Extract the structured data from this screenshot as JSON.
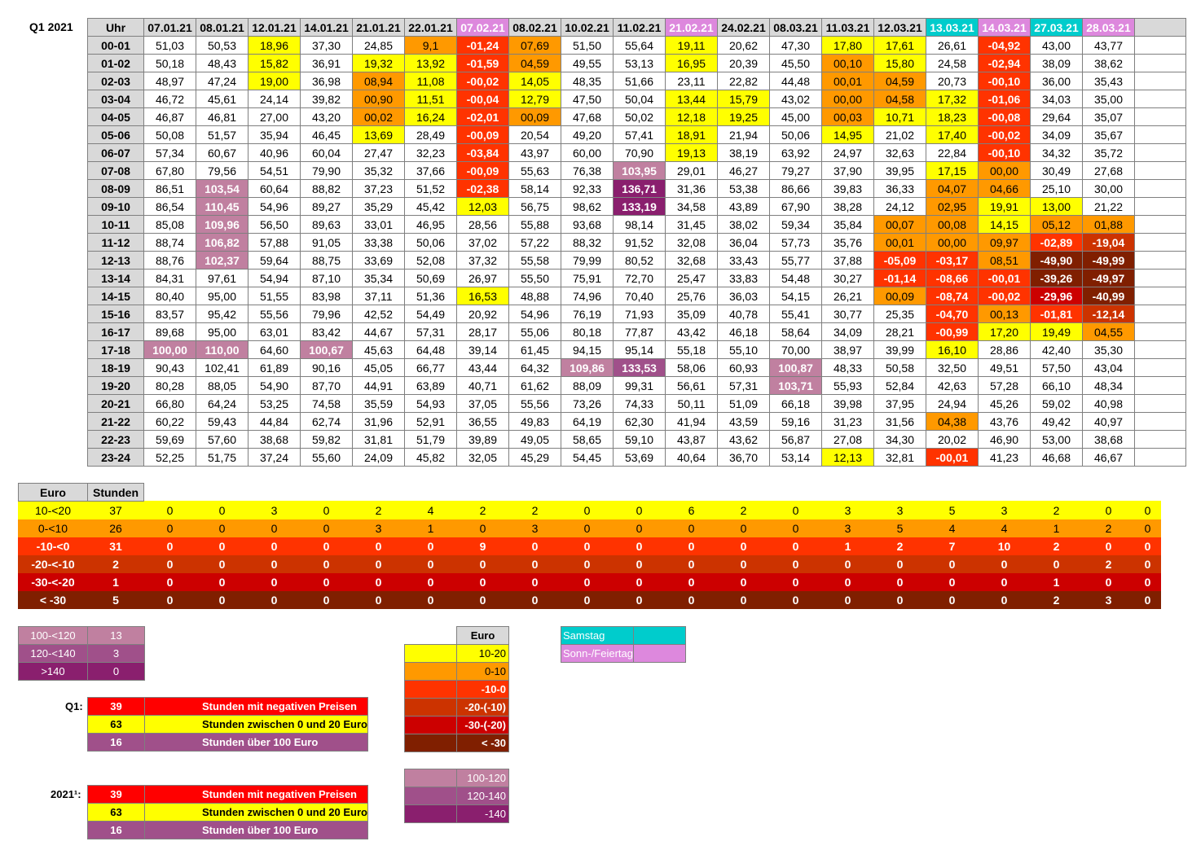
{
  "title": "Q1 2021",
  "colors": {
    "header": "#d9d9d9",
    "yellow": "#ffff00",
    "orange": "#ff9900",
    "red1": "#ff3300",
    "red2": "#cc3300",
    "red3": "#cc0000",
    "dark": "#801f00",
    "lilac": "#c080a0",
    "mauve": "#a0508a",
    "purple": "#8a1f6e",
    "cyan": "#00cccc",
    "pink": "#dd88dd",
    "brightred": "#ff0000",
    "sumred": "#ff3300"
  },
  "table": {
    "corner": "Uhr",
    "dates": [
      "07.01.21",
      "08.01.21",
      "12.01.21",
      "14.01.21",
      "21.01.21",
      "22.01.21",
      "07.02.21",
      "08.02.21",
      "10.02.21",
      "11.02.21",
      "21.02.21",
      "24.02.21",
      "08.03.21",
      "11.03.21",
      "12.03.21",
      "13.03.21",
      "14.03.21",
      "27.03.21",
      "28.03.21"
    ],
    "date_types": [
      "",
      "",
      "",
      "",
      "",
      "",
      "so",
      "",
      "",
      "",
      "so",
      "",
      "",
      "",
      "",
      "sa",
      "so",
      "sa",
      "so"
    ],
    "hours": [
      "00-01",
      "01-02",
      "02-03",
      "03-04",
      "04-05",
      "05-06",
      "06-07",
      "07-08",
      "08-09",
      "09-10",
      "10-11",
      "11-12",
      "12-13",
      "13-14",
      "14-15",
      "15-16",
      "16-17",
      "17-18",
      "18-19",
      "19-20",
      "20-21",
      "21-22",
      "22-23",
      "23-24"
    ],
    "rows": [
      [
        "51,03",
        "50,53",
        "18,96",
        "37,30",
        "24,85",
        "9,1",
        "-01,24",
        "07,69",
        "51,50",
        "55,64",
        "19,11",
        "20,62",
        "47,30",
        "17,80",
        "17,61",
        "26,61",
        "-04,92",
        "43,00",
        "43,77"
      ],
      [
        "50,18",
        "48,43",
        "15,82",
        "36,91",
        "19,32",
        "13,92",
        "-01,59",
        "04,59",
        "49,55",
        "53,13",
        "16,95",
        "20,39",
        "45,50",
        "00,10",
        "15,80",
        "24,58",
        "-02,94",
        "38,09",
        "38,62"
      ],
      [
        "48,97",
        "47,24",
        "19,00",
        "36,98",
        "08,94",
        "11,08",
        "-00,02",
        "14,05",
        "48,35",
        "51,66",
        "23,11",
        "22,82",
        "44,48",
        "00,01",
        "04,59",
        "20,73",
        "-00,10",
        "36,00",
        "35,43"
      ],
      [
        "46,72",
        "45,61",
        "24,14",
        "39,82",
        "00,90",
        "11,51",
        "-00,04",
        "12,79",
        "47,50",
        "50,04",
        "13,44",
        "15,79",
        "43,02",
        "00,00",
        "04,58",
        "17,32",
        "-01,06",
        "34,03",
        "35,00"
      ],
      [
        "46,87",
        "46,81",
        "27,00",
        "43,20",
        "00,02",
        "16,24",
        "-02,01",
        "00,09",
        "47,68",
        "50,02",
        "12,18",
        "19,25",
        "45,00",
        "00,03",
        "10,71",
        "18,23",
        "-00,08",
        "29,64",
        "35,07"
      ],
      [
        "50,08",
        "51,57",
        "35,94",
        "46,45",
        "13,69",
        "28,49",
        "-00,09",
        "20,54",
        "49,20",
        "57,41",
        "18,91",
        "21,94",
        "50,06",
        "14,95",
        "21,02",
        "17,40",
        "-00,02",
        "34,09",
        "35,67"
      ],
      [
        "57,34",
        "60,67",
        "40,96",
        "60,04",
        "27,47",
        "32,23",
        "-03,84",
        "43,97",
        "60,00",
        "70,90",
        "19,13",
        "38,19",
        "63,92",
        "24,97",
        "32,63",
        "22,84",
        "-00,10",
        "34,32",
        "35,72"
      ],
      [
        "67,80",
        "79,56",
        "54,51",
        "79,90",
        "35,32",
        "37,66",
        "-00,09",
        "55,63",
        "76,38",
        "103,95",
        "29,01",
        "46,27",
        "79,27",
        "37,90",
        "39,95",
        "17,15",
        "00,00",
        "30,49",
        "27,68"
      ],
      [
        "86,51",
        "103,54",
        "60,64",
        "88,82",
        "37,23",
        "51,52",
        "-02,38",
        "58,14",
        "92,33",
        "136,71",
        "31,36",
        "53,38",
        "86,66",
        "39,83",
        "36,33",
        "04,07",
        "04,66",
        "25,10",
        "30,00"
      ],
      [
        "86,54",
        "110,45",
        "54,96",
        "89,27",
        "35,29",
        "45,42",
        "12,03",
        "56,75",
        "98,62",
        "133,19",
        "34,58",
        "43,89",
        "67,90",
        "38,28",
        "24,12",
        "02,95",
        "19,91",
        "13,00",
        "21,22"
      ],
      [
        "85,08",
        "109,96",
        "56,50",
        "89,63",
        "33,01",
        "46,95",
        "28,56",
        "55,88",
        "93,68",
        "98,14",
        "31,45",
        "38,02",
        "59,34",
        "35,84",
        "00,07",
        "00,08",
        "14,15",
        "05,12",
        "01,88"
      ],
      [
        "88,74",
        "106,82",
        "57,88",
        "91,05",
        "33,38",
        "50,06",
        "37,02",
        "57,22",
        "88,32",
        "91,52",
        "32,08",
        "36,04",
        "57,73",
        "35,76",
        "00,01",
        "00,00",
        "09,97",
        "-02,89",
        "-19,04"
      ],
      [
        "88,76",
        "102,37",
        "59,64",
        "88,75",
        "33,69",
        "52,08",
        "37,32",
        "55,58",
        "79,99",
        "80,52",
        "32,68",
        "33,43",
        "55,77",
        "37,88",
        "-05,09",
        "-03,17",
        "08,51",
        "-49,90",
        "-49,99"
      ],
      [
        "84,31",
        "97,61",
        "54,94",
        "87,10",
        "35,34",
        "50,69",
        "26,97",
        "55,50",
        "75,91",
        "72,70",
        "25,47",
        "33,83",
        "54,48",
        "30,27",
        "-01,14",
        "-08,66",
        "-00,01",
        "-39,26",
        "-49,97"
      ],
      [
        "80,40",
        "95,00",
        "51,55",
        "83,98",
        "37,11",
        "51,36",
        "16,53",
        "48,88",
        "74,96",
        "70,40",
        "25,76",
        "36,03",
        "54,15",
        "26,21",
        "00,09",
        "-08,74",
        "-00,02",
        "-29,96",
        "-40,99"
      ],
      [
        "83,57",
        "95,42",
        "55,56",
        "79,96",
        "42,52",
        "54,49",
        "20,92",
        "54,96",
        "76,19",
        "71,93",
        "35,09",
        "40,78",
        "55,41",
        "30,77",
        "25,35",
        "-04,70",
        "00,13",
        "-01,81",
        "-12,14"
      ],
      [
        "89,68",
        "95,00",
        "63,01",
        "83,42",
        "44,67",
        "57,31",
        "28,17",
        "55,06",
        "80,18",
        "77,87",
        "43,42",
        "46,18",
        "58,64",
        "34,09",
        "28,21",
        "-00,99",
        "17,20",
        "19,49",
        "04,55"
      ],
      [
        "100,00",
        "110,00",
        "64,60",
        "100,67",
        "45,63",
        "64,48",
        "39,14",
        "61,45",
        "94,15",
        "95,14",
        "55,18",
        "55,10",
        "70,00",
        "38,97",
        "39,99",
        "16,10",
        "28,86",
        "42,40",
        "35,30"
      ],
      [
        "90,43",
        "102,41",
        "61,89",
        "90,16",
        "45,05",
        "66,77",
        "43,44",
        "64,32",
        "109,86",
        "133,53",
        "58,06",
        "60,93",
        "100,87",
        "48,33",
        "50,58",
        "32,50",
        "49,51",
        "57,50",
        "43,04"
      ],
      [
        "80,28",
        "88,05",
        "54,90",
        "87,70",
        "44,91",
        "63,89",
        "40,71",
        "61,62",
        "88,09",
        "99,31",
        "56,61",
        "57,31",
        "103,71",
        "55,93",
        "52,84",
        "42,63",
        "57,28",
        "66,10",
        "48,34"
      ],
      [
        "66,80",
        "64,24",
        "53,25",
        "74,58",
        "35,59",
        "54,93",
        "37,05",
        "55,56",
        "73,26",
        "74,33",
        "50,11",
        "51,09",
        "66,18",
        "39,98",
        "37,95",
        "24,94",
        "45,26",
        "59,02",
        "40,98"
      ],
      [
        "60,22",
        "59,43",
        "44,84",
        "62,74",
        "31,96",
        "52,91",
        "36,55",
        "49,83",
        "64,19",
        "62,30",
        "41,94",
        "43,59",
        "59,16",
        "31,23",
        "31,56",
        "04,38",
        "43,76",
        "49,42",
        "40,97"
      ],
      [
        "59,69",
        "57,60",
        "38,68",
        "59,82",
        "31,81",
        "51,79",
        "39,89",
        "49,05",
        "58,65",
        "59,10",
        "43,87",
        "43,62",
        "56,87",
        "27,08",
        "34,30",
        "20,02",
        "46,90",
        "53,00",
        "38,68"
      ],
      [
        "52,25",
        "51,75",
        "37,24",
        "55,60",
        "24,09",
        "45,82",
        "32,05",
        "45,29",
        "54,45",
        "53,69",
        "40,64",
        "36,70",
        "53,14",
        "12,13",
        "32,81",
        "-00,01",
        "41,23",
        "46,68",
        "46,67"
      ]
    ],
    "cell_classes": [
      [
        "",
        "",
        "y",
        "",
        "",
        "o",
        "r1",
        "o",
        "",
        "",
        "y",
        "",
        "",
        "y",
        "y",
        "",
        "r1",
        "",
        ""
      ],
      [
        "",
        "",
        "y",
        "",
        "y",
        "y",
        "r1",
        "o",
        "",
        "",
        "y",
        "",
        "",
        "o",
        "y",
        "",
        "r1",
        "",
        ""
      ],
      [
        "",
        "",
        "y",
        "",
        "o",
        "y",
        "r1",
        "y",
        "",
        "",
        "",
        "",
        "",
        "o",
        "o",
        "",
        "r1",
        "",
        ""
      ],
      [
        "",
        "",
        "",
        "",
        "o",
        "y",
        "r1",
        "y",
        "",
        "",
        "y",
        "y",
        "",
        "o",
        "o",
        "y",
        "r1",
        "",
        ""
      ],
      [
        "",
        "",
        "",
        "",
        "o",
        "y",
        "r1",
        "o",
        "",
        "",
        "y",
        "y",
        "",
        "o",
        "y",
        "y",
        "r1",
        "",
        ""
      ],
      [
        "",
        "",
        "",
        "",
        "y",
        "",
        "r1",
        "",
        "",
        "",
        "y",
        "",
        "",
        "y",
        "",
        "y",
        "r1",
        "",
        ""
      ],
      [
        "",
        "",
        "",
        "",
        "",
        "",
        "r1",
        "",
        "",
        "",
        "y",
        "",
        "",
        "",
        "",
        "",
        "r1",
        "",
        ""
      ],
      [
        "",
        "",
        "",
        "",
        "",
        "",
        "r1",
        "",
        "",
        "l1",
        "",
        "",
        "",
        "",
        "",
        "y",
        "o",
        "",
        ""
      ],
      [
        "",
        "l1",
        "",
        "",
        "",
        "",
        "r1",
        "",
        "",
        "l3",
        "",
        "",
        "",
        "",
        "",
        "o",
        "o",
        "",
        ""
      ],
      [
        "",
        "l1",
        "",
        "",
        "",
        "",
        "y",
        "",
        "",
        "l3",
        "",
        "",
        "",
        "",
        "",
        "o",
        "y",
        "y",
        ""
      ],
      [
        "",
        "l1",
        "",
        "",
        "",
        "",
        "",
        "",
        "",
        "",
        "",
        "",
        "",
        "",
        "o",
        "o",
        "y",
        "o",
        "o"
      ],
      [
        "",
        "l1",
        "",
        "",
        "",
        "",
        "",
        "",
        "",
        "",
        "",
        "",
        "",
        "",
        "o",
        "o",
        "o",
        "r1",
        "r2"
      ],
      [
        "",
        "l1",
        "",
        "",
        "",
        "",
        "",
        "",
        "",
        "",
        "",
        "",
        "",
        "",
        "r1",
        "r1",
        "o",
        "dk",
        "dk"
      ],
      [
        "",
        "",
        "",
        "",
        "",
        "",
        "",
        "",
        "",
        "",
        "",
        "",
        "",
        "",
        "r1",
        "r1",
        "r1",
        "dk",
        "dk"
      ],
      [
        "",
        "",
        "",
        "",
        "",
        "",
        "y",
        "",
        "",
        "",
        "",
        "",
        "",
        "",
        "o",
        "r1",
        "r1",
        "r3",
        "dk"
      ],
      [
        "",
        "",
        "",
        "",
        "",
        "",
        "",
        "",
        "",
        "",
        "",
        "",
        "",
        "",
        "",
        "r1",
        "o",
        "r1",
        "r2"
      ],
      [
        "",
        "",
        "",
        "",
        "",
        "",
        "",
        "",
        "",
        "",
        "",
        "",
        "",
        "",
        "",
        "r1",
        "y",
        "y",
        "o"
      ],
      [
        "l1",
        "l1",
        "",
        "l1",
        "",
        "",
        "",
        "",
        "",
        "",
        "",
        "",
        "",
        "",
        "",
        "y",
        "",
        "",
        ""
      ],
      [
        "",
        "",
        "",
        "",
        "",
        "",
        "",
        "",
        "l1",
        "l2",
        "",
        "",
        "l1",
        "",
        "",
        "",
        "",
        "",
        ""
      ],
      [
        "",
        "",
        "",
        "",
        "",
        "",
        "",
        "",
        "",
        "",
        "",
        "",
        "l1",
        "",
        "",
        "",
        "",
        "",
        ""
      ],
      [
        "",
        "",
        "",
        "",
        "",
        "",
        "",
        "",
        "",
        "",
        "",
        "",
        "",
        "",
        "",
        "",
        "",
        "",
        ""
      ],
      [
        "",
        "",
        "",
        "",
        "",
        "",
        "",
        "",
        "",
        "",
        "",
        "",
        "",
        "",
        "",
        "o",
        "",
        "",
        ""
      ],
      [
        "",
        "",
        "",
        "",
        "",
        "",
        "",
        "",
        "",
        "",
        "",
        "",
        "",
        "",
        "",
        "",
        "",
        "",
        ""
      ],
      [
        "",
        "",
        "",
        "",
        "",
        "",
        "",
        "",
        "",
        "",
        "",
        "",
        "",
        "y",
        "",
        "r1",
        "",
        "",
        ""
      ]
    ]
  },
  "summary": {
    "col1": "Euro",
    "col2": "Stunden",
    "rows": [
      {
        "label": "10-<20",
        "total": "37",
        "counts": [
          "0",
          "0",
          "3",
          "0",
          "2",
          "4",
          "2",
          "2",
          "0",
          "0",
          "6",
          "2",
          "0",
          "3",
          "3",
          "5",
          "3",
          "2",
          "0",
          "0"
        ],
        "cls": "y"
      },
      {
        "label": "0-<10",
        "total": "26",
        "counts": [
          "0",
          "0",
          "0",
          "0",
          "3",
          "1",
          "0",
          "3",
          "0",
          "0",
          "0",
          "0",
          "0",
          "3",
          "5",
          "4",
          "4",
          "1",
          "2",
          "0"
        ],
        "cls": "o"
      },
      {
        "label": "-10-<0",
        "total": "31",
        "counts": [
          "0",
          "0",
          "0",
          "0",
          "0",
          "0",
          "9",
          "0",
          "0",
          "0",
          "0",
          "0",
          "0",
          "1",
          "2",
          "7",
          "10",
          "2",
          "0",
          "0"
        ],
        "cls": "r1"
      },
      {
        "label": "-20-<-10",
        "total": "2",
        "counts": [
          "0",
          "0",
          "0",
          "0",
          "0",
          "0",
          "0",
          "0",
          "0",
          "0",
          "0",
          "0",
          "0",
          "0",
          "0",
          "0",
          "0",
          "0",
          "2",
          "0"
        ],
        "cls": "r2"
      },
      {
        "label": "-30-<-20",
        "total": "1",
        "counts": [
          "0",
          "0",
          "0",
          "0",
          "0",
          "0",
          "0",
          "0",
          "0",
          "0",
          "0",
          "0",
          "0",
          "0",
          "0",
          "0",
          "0",
          "1",
          "0",
          "0"
        ],
        "cls": "r3"
      },
      {
        "label": "< -30",
        "total": "5",
        "counts": [
          "0",
          "0",
          "0",
          "0",
          "0",
          "0",
          "0",
          "0",
          "0",
          "0",
          "0",
          "0",
          "0",
          "0",
          "0",
          "0",
          "0",
          "2",
          "3",
          "0"
        ],
        "cls": "dk"
      }
    ]
  },
  "high": [
    {
      "label": "100-<120",
      "value": "13"
    },
    {
      "label": "120-<140",
      "value": "3"
    },
    {
      "label": ">140",
      "value": "0"
    }
  ],
  "q1": {
    "label": "Q1:",
    "rows": [
      {
        "value": "39",
        "text": "Stunden mit negativen Preisen"
      },
      {
        "value": "63",
        "text": "Stunden zwischen 0 und 20 Euro"
      },
      {
        "value": "16",
        "text": "Stunden über 100 Euro"
      }
    ]
  },
  "y2021": {
    "label": "2021¹:",
    "rows": [
      {
        "value": "39",
        "text": "Stunden mit negativen Preisen"
      },
      {
        "value": "63",
        "text": "Stunden zwischen 0 und 20 Euro"
      },
      {
        "value": "16",
        "text": "Stunden über 100 Euro"
      }
    ]
  },
  "legend": {
    "title": "Euro",
    "items": [
      "10-20",
      "0-10",
      "-10-0",
      "-20-(-10)",
      "-30-(-20)",
      "< -30"
    ],
    "high": [
      "100-120",
      "120-140",
      "-140"
    ]
  },
  "day_legend": {
    "saturday": "Samstag",
    "sunday": "Sonn-/Feiertag"
  }
}
